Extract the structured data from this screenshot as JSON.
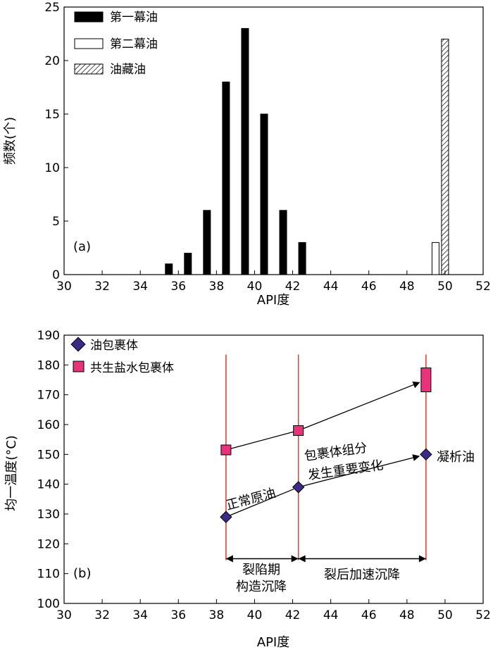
{
  "chart_data": [
    {
      "type": "bar",
      "panel_label": "(a)",
      "xlabel": "API度",
      "ylabel": "频数(个)",
      "xlim": [
        30,
        52
      ],
      "ylim": [
        0,
        25
      ],
      "xticks": [
        30,
        32,
        34,
        36,
        38,
        40,
        42,
        44,
        46,
        48,
        50,
        52
      ],
      "yticks": [
        0,
        5,
        10,
        15,
        20,
        25
      ],
      "legend_position": "top-left",
      "series": [
        {
          "name": "第一幕油",
          "style": "solid",
          "color": "#000000",
          "points": [
            [
              35.5,
              1
            ],
            [
              36.5,
              2
            ],
            [
              37.5,
              6
            ],
            [
              38.5,
              18
            ],
            [
              39.5,
              23
            ],
            [
              40.5,
              15
            ],
            [
              41.5,
              6
            ],
            [
              42.5,
              3
            ]
          ]
        },
        {
          "name": "第二幕油",
          "style": "open",
          "color": "#ffffff",
          "points": [
            [
              49.5,
              3
            ]
          ]
        },
        {
          "name": "油藏油",
          "style": "hatched",
          "color": "#000000",
          "points": [
            [
              50,
              22
            ]
          ]
        }
      ]
    },
    {
      "type": "scatter",
      "panel_label": "(b)",
      "xlabel": "API度",
      "ylabel": "均一温度(°C)",
      "xlim": [
        30,
        52
      ],
      "ylim": [
        100,
        190
      ],
      "xticks": [
        30,
        32,
        34,
        36,
        38,
        40,
        42,
        44,
        46,
        48,
        50,
        52
      ],
      "yticks": [
        100,
        110,
        120,
        130,
        140,
        150,
        160,
        170,
        180,
        190
      ],
      "legend_position": "top-left",
      "series": [
        {
          "name": "油包裹体",
          "marker": "diamond",
          "color": "#3d2a86",
          "points": [
            [
              38.5,
              129
            ],
            [
              42.3,
              139
            ],
            [
              49,
              150
            ]
          ]
        },
        {
          "name": "共生盐水包裹体",
          "marker": "square",
          "color": "#e8327a",
          "points": [
            [
              38.5,
              151.5
            ],
            [
              42.3,
              158
            ],
            [
              49,
              175
            ]
          ]
        }
      ],
      "vertical_lines": {
        "x": [
          38.5,
          42.3,
          49
        ],
        "color": "#e03a2a"
      },
      "annotations": [
        "正常原油",
        "包裹体组分",
        "发生重要变化",
        "凝析油",
        "裂陷期",
        "构造沉降",
        "裂后加速沉降"
      ],
      "period_arrows": [
        {
          "from": 38.5,
          "to": 42.3,
          "y": 115
        },
        {
          "from": 42.3,
          "to": 49,
          "y": 115
        }
      ]
    }
  ]
}
